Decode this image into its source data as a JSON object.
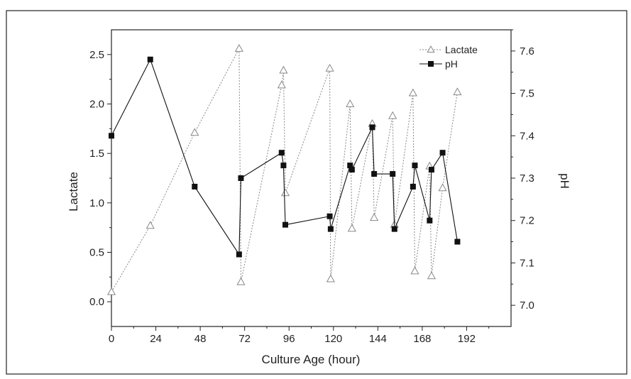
{
  "chart_data": {
    "type": "line",
    "title": "",
    "xlabel": "Culture Age (hour)",
    "ylabel_left": "Lactate",
    "ylabel_right": "pH",
    "xlim": [
      0,
      216
    ],
    "x_ticks": [
      0,
      24,
      48,
      72,
      96,
      120,
      144,
      168,
      192
    ],
    "y_left_lim": [
      -0.25,
      2.75
    ],
    "y_left_ticks": [
      "0.0",
      "0.5",
      "1.0",
      "1.5",
      "2.0",
      "2.5"
    ],
    "y_right_lim": [
      6.95,
      7.65
    ],
    "y_right_ticks": [
      "7.0",
      "7.1",
      "7.2",
      "7.3",
      "7.4",
      "7.5",
      "7.6"
    ],
    "grid": false,
    "legend_position": "top-right",
    "series": [
      {
        "name": "Lactate",
        "axis": "left",
        "marker": "open-triangle",
        "line_style": "dotted",
        "color": "#888888",
        "points": [
          [
            0,
            0.1
          ],
          [
            21,
            0.77
          ],
          [
            45,
            1.71
          ],
          [
            69,
            2.56
          ],
          [
            70,
            0.2
          ],
          [
            92,
            2.19
          ],
          [
            93,
            2.34
          ],
          [
            94,
            1.1
          ],
          [
            118,
            2.36
          ],
          [
            118.5,
            0.23
          ],
          [
            129,
            2.0
          ],
          [
            130,
            0.74
          ],
          [
            141,
            1.8
          ],
          [
            142,
            0.85
          ],
          [
            152,
            1.88
          ],
          [
            153,
            0.78
          ],
          [
            163,
            2.11
          ],
          [
            164,
            0.31
          ],
          [
            172,
            1.37
          ],
          [
            173,
            0.26
          ],
          [
            179,
            1.15
          ],
          [
            187,
            2.12
          ]
        ]
      },
      {
        "name": "pH",
        "axis": "right",
        "marker": "filled-square",
        "line_style": "solid",
        "color": "#111111",
        "points": [
          [
            0,
            7.4
          ],
          [
            21,
            7.58
          ],
          [
            45,
            7.28
          ],
          [
            69,
            7.12
          ],
          [
            70,
            7.3
          ],
          [
            92,
            7.36
          ],
          [
            93,
            7.33
          ],
          [
            94,
            7.19
          ],
          [
            118,
            7.21
          ],
          [
            118.5,
            7.18
          ],
          [
            129,
            7.33
          ],
          [
            130,
            7.32
          ],
          [
            141,
            7.42
          ],
          [
            142,
            7.31
          ],
          [
            152,
            7.31
          ],
          [
            153,
            7.18
          ],
          [
            163,
            7.28
          ],
          [
            164,
            7.33
          ],
          [
            172,
            7.2
          ],
          [
            173,
            7.32
          ],
          [
            179,
            7.36
          ],
          [
            187,
            7.15
          ]
        ]
      }
    ]
  }
}
